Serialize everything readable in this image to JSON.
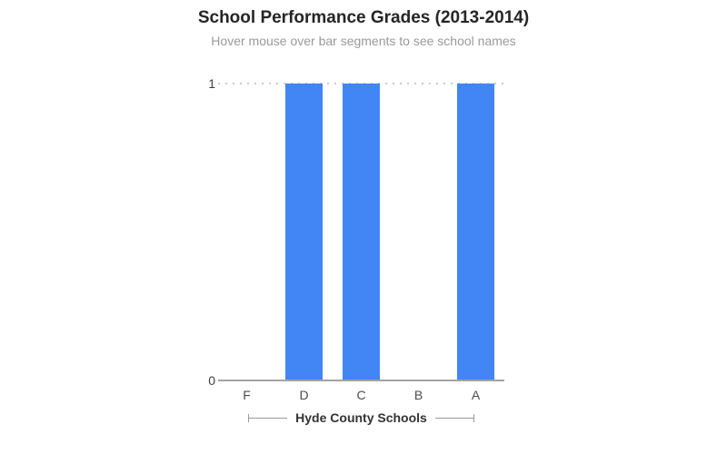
{
  "chart_data": {
    "type": "bar",
    "title": "School Performance Grades (2013-2014)",
    "subtitle": "Hover mouse over bar segments to see school names",
    "categories": [
      "F",
      "D",
      "C",
      "B",
      "A"
    ],
    "values": [
      0,
      1,
      1,
      0,
      1
    ],
    "series": [
      {
        "name": "Hyde County Schools",
        "values": [
          0,
          1,
          1,
          0,
          1
        ]
      }
    ],
    "xlabel": "Hyde County Schools",
    "ylabel": "",
    "ylim": [
      0,
      1
    ],
    "yticks": [
      0,
      1
    ],
    "bar_color": "#4285f4",
    "gridline_style": "dotted",
    "gridline_color": "#cccccc",
    "axis_line_color": "#a3a3a3",
    "legend": "none"
  }
}
